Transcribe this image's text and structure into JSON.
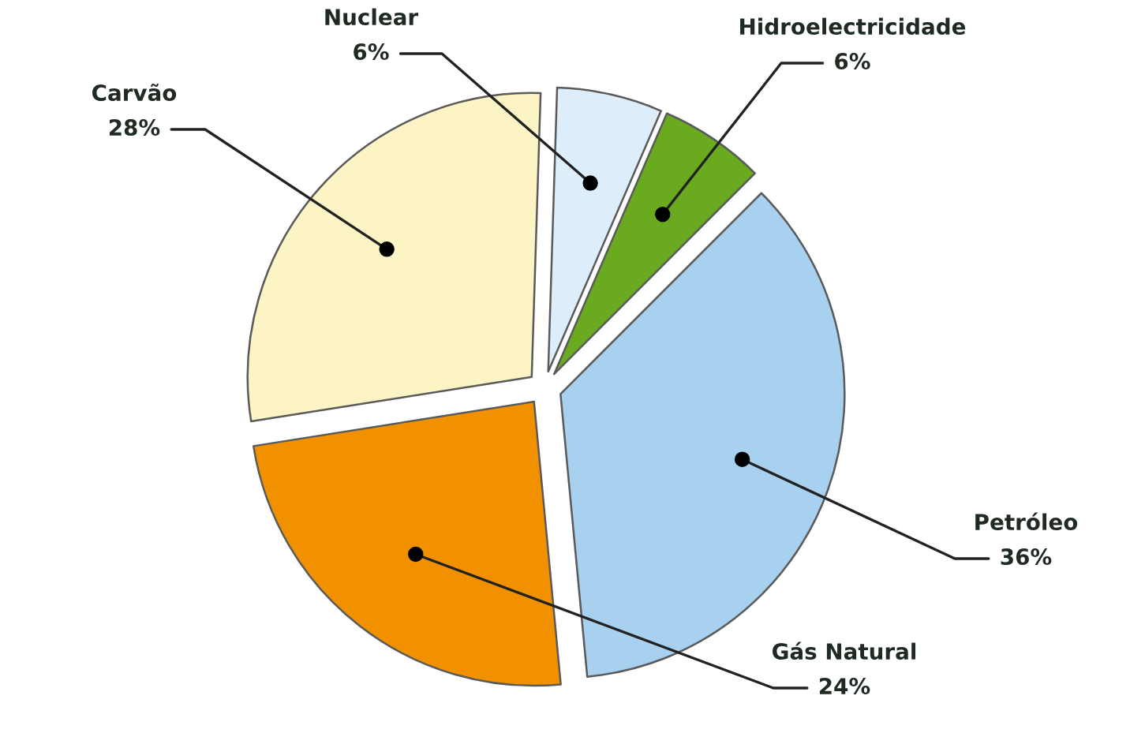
{
  "chart_data": {
    "type": "pie",
    "categories": [
      "Hidroelectricidade",
      "Nuclear",
      "Carvão",
      "Gás Natural",
      "Petróleo"
    ],
    "values": [
      6,
      6,
      28,
      24,
      36
    ],
    "colors": [
      "#6aaa1f",
      "#ddeefa",
      "#fcf4c4",
      "#f29100",
      "#a7d1ef"
    ],
    "value_labels": [
      "6%",
      "6%",
      "28%",
      "24%",
      "36%"
    ]
  }
}
